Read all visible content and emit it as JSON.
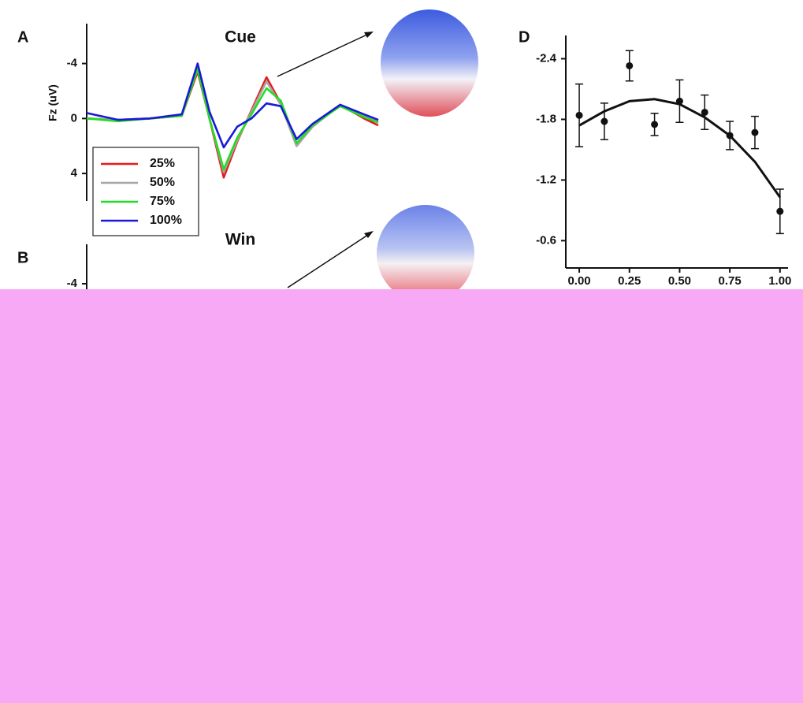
{
  "chart_data": [
    {
      "label": "A",
      "type": "line",
      "title": "Cue",
      "y_label": "Fz (uV)",
      "x": [
        0,
        40,
        80,
        120,
        140,
        155,
        173,
        190,
        208,
        227,
        245,
        265,
        285,
        320,
        350,
        368
      ],
      "xlim": [
        0,
        368
      ],
      "ylim": [
        6,
        -6.9
      ],
      "yticks": [
        -4,
        0,
        4
      ],
      "legend": "lower left",
      "series": [
        {
          "name": "25%",
          "color": "#e8191c",
          "values": [
            0,
            0.1,
            0,
            -0.2,
            -3.4,
            0,
            4.3,
            1.7,
            -0.6,
            -3.0,
            -1.1,
            2.0,
            0.6,
            -1.0,
            0,
            0.5
          ]
        },
        {
          "name": "50%",
          "color": "#a6a6a6",
          "values": [
            0,
            0.1,
            0,
            -0.2,
            -3.6,
            0,
            3.9,
            1.6,
            -0.5,
            -2.7,
            -1.0,
            2.0,
            0.6,
            -1.0,
            -0.2,
            0.2
          ]
        },
        {
          "name": "75%",
          "color": "#22dd22",
          "values": [
            0,
            0.2,
            0,
            -0.2,
            -3.6,
            0,
            3.7,
            1.4,
            -0.3,
            -2.2,
            -1.3,
            1.8,
            0.5,
            -0.9,
            -0.1,
            0.3
          ]
        },
        {
          "name": "100%",
          "color": "#1a1ad6",
          "values": [
            -0.4,
            0.1,
            0,
            -0.3,
            -4.0,
            -0.5,
            2.1,
            0.6,
            0,
            -1.1,
            -0.9,
            1.5,
            0.4,
            -1.0,
            -0.3,
            0.1
          ]
        }
      ]
    },
    {
      "label": "B",
      "type": "line",
      "title": "Win",
      "ylim": [
        0,
        -6.86
      ],
      "yticks": [
        -4
      ],
      "series": []
    },
    {
      "label": "D",
      "type": "scatter",
      "x": [
        0,
        0.125,
        0.25,
        0.375,
        0.5,
        0.625,
        0.75,
        0.875,
        1.0
      ],
      "values": [
        -1.84,
        -1.78,
        -2.33,
        -1.75,
        -1.98,
        -1.87,
        -1.64,
        -1.67,
        -0.89
      ],
      "errors": [
        0.31,
        0.18,
        0.15,
        0.11,
        0.21,
        0.17,
        0.14,
        0.16,
        0.22
      ],
      "fit": {
        "x": [
          0,
          0.125,
          0.25,
          0.375,
          0.5,
          0.625,
          0.75,
          0.875,
          1.0
        ],
        "values": [
          -1.74,
          -1.88,
          -1.98,
          -2.0,
          -1.95,
          -1.82,
          -1.64,
          -1.38,
          -1.03
        ]
      },
      "xlim": [
        -0.067,
        1.04
      ],
      "ylim": [
        -0.33,
        -2.63
      ],
      "xticks": [
        {
          "value": 0,
          "label": "0.00"
        },
        {
          "value": 0.25,
          "label": "0.25"
        },
        {
          "value": 0.5,
          "label": "0.50"
        },
        {
          "value": 0.75,
          "label": "0.75"
        },
        {
          "value": 1.0,
          "label": "1.00"
        }
      ],
      "yticks": [
        -2.4,
        -1.8,
        -1.2,
        -0.6
      ]
    }
  ]
}
